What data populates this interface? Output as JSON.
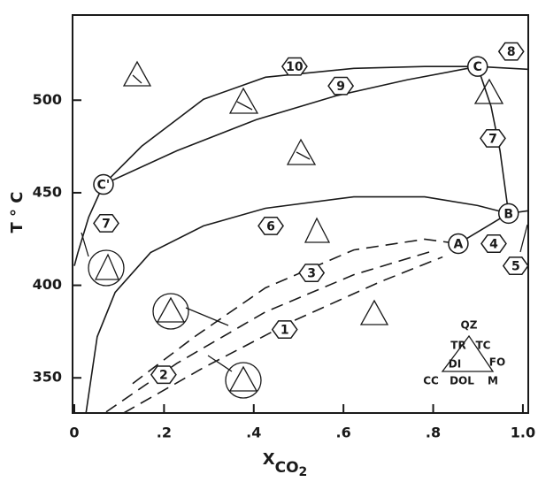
{
  "chart_data": {
    "type": "line",
    "ylabel": "T ° C",
    "xlabel": {
      "main": "X",
      "sub": "CO",
      "subsub": "2"
    },
    "xlim": [
      0,
      1.01
    ],
    "ylim": [
      331,
      546
    ],
    "xticks": [
      {
        "value": 0,
        "label": "0"
      },
      {
        "value": 0.2,
        "label": ".2"
      },
      {
        "value": 0.4,
        "label": ".4"
      },
      {
        "value": 0.6,
        "label": ".6"
      },
      {
        "value": 0.8,
        "label": ".8"
      },
      {
        "value": 1.0,
        "label": "1.0"
      }
    ],
    "yticks": [
      350,
      400,
      450,
      500
    ],
    "color": "#1a1a1a",
    "series": [
      {
        "x": [
          0.065,
          0.15,
          0.288,
          0.426,
          0.623,
          0.781,
          0.899,
          1.01
        ],
        "values": [
          454.5,
          475.1,
          500.5,
          512.4,
          517.2,
          518.2,
          518.2,
          516.7
        ],
        "dashed": false
      },
      {
        "x": [
          0.065,
          0.229,
          0.406,
          0.584,
          0.742,
          0.899
        ],
        "values": [
          454.5,
          472.7,
          489.5,
          502.4,
          511,
          518.2
        ],
        "dashed": false
      },
      {
        "x": [
          0.899,
          0.929,
          0.949,
          0.968,
          1.01
        ],
        "values": [
          518.2,
          496.7,
          472.7,
          438.8,
          440.2
        ],
        "dashed": false
      },
      {
        "x": [
          0.026,
          0.051,
          0.091,
          0.17,
          0.288,
          0.426,
          0.623,
          0.781,
          0.899,
          0.968
        ],
        "values": [
          331,
          372.2,
          396.2,
          417.7,
          432.1,
          441.6,
          447.8,
          447.8,
          443.1,
          438.8
        ],
        "dashed": false
      },
      {
        "x": [
          0.065,
          0.032,
          0.008,
          0
        ],
        "values": [
          454.5,
          436.8,
          417.7,
          410.5
        ],
        "dashed": false
      },
      {
        "x": [
          0.856,
          0.968
        ],
        "values": [
          422.5,
          438.8
        ],
        "dashed": false
      },
      {
        "x": [
          0.13,
          0.268,
          0.426,
          0.623,
          0.781,
          0.856
        ],
        "values": [
          346.9,
          372.2,
          398.6,
          419.1,
          424.9,
          422.5
        ],
        "dashed": true
      },
      {
        "x": [
          0.071,
          0.229,
          0.426,
          0.623,
          0.801
        ],
        "values": [
          331.6,
          357.9,
          385.6,
          405.7,
          418.7
        ],
        "dashed": true
      },
      {
        "x": [
          0.11,
          0.288,
          0.485,
          0.682,
          0.821
        ],
        "values": [
          331,
          355.5,
          380.4,
          401.9,
          415.3
        ],
        "dashed": true
      }
    ],
    "regions": [
      {
        "label": "10",
        "x": 0.491,
        "y": 518.2
      },
      {
        "label": "9",
        "x": 0.594,
        "y": 507.7
      },
      {
        "label": "8",
        "x": 0.974,
        "y": 526.3
      },
      {
        "label": "7",
        "x": 0.933,
        "y": 479.4
      },
      {
        "label": "6",
        "x": 0.438,
        "y": 432.1
      },
      {
        "label": "4",
        "x": 0.935,
        "y": 422.5
      },
      {
        "label": "5",
        "x": 0.984,
        "y": 410.5
      },
      {
        "label": "3",
        "x": 0.529,
        "y": 406.7
      },
      {
        "label": "1",
        "x": 0.469,
        "y": 376.1
      },
      {
        "label": "2",
        "x": 0.199,
        "y": 351.7
      },
      {
        "label": "7",
        "x": 0.071,
        "y": 433.5
      }
    ],
    "points": [
      {
        "label": "C'",
        "x": 0.065,
        "y": 454.5
      },
      {
        "label": "C",
        "x": 0.899,
        "y": 518.2
      },
      {
        "label": "B",
        "x": 0.968,
        "y": 438.8
      },
      {
        "label": "A",
        "x": 0.856,
        "y": 422.5
      }
    ],
    "inset_labels": [
      "QZ",
      "TR",
      "TC",
      "DI",
      "FO",
      "CC",
      "DOL",
      "M"
    ]
  }
}
